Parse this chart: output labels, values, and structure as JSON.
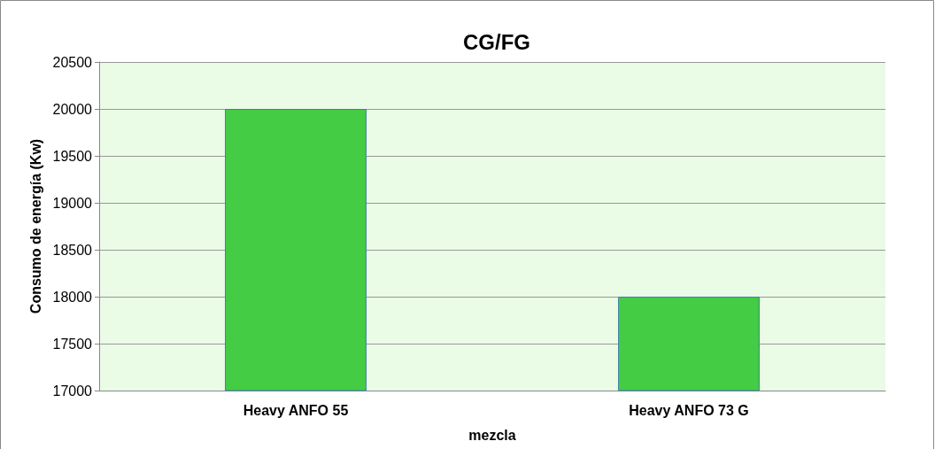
{
  "chart_data": {
    "type": "bar",
    "title": "CG/FG",
    "xlabel": "mezcla",
    "ylabel": "Consumo de energía (Kw)",
    "categories": [
      "Heavy ANFO 55",
      "Heavy ANFO 73 G"
    ],
    "values": [
      20000,
      18000
    ],
    "color": "#44cc44",
    "ylim": [
      17000,
      20500
    ],
    "yticks": [
      17000,
      17500,
      18000,
      18500,
      19000,
      19500,
      20000,
      20500
    ],
    "grid": "y"
  }
}
